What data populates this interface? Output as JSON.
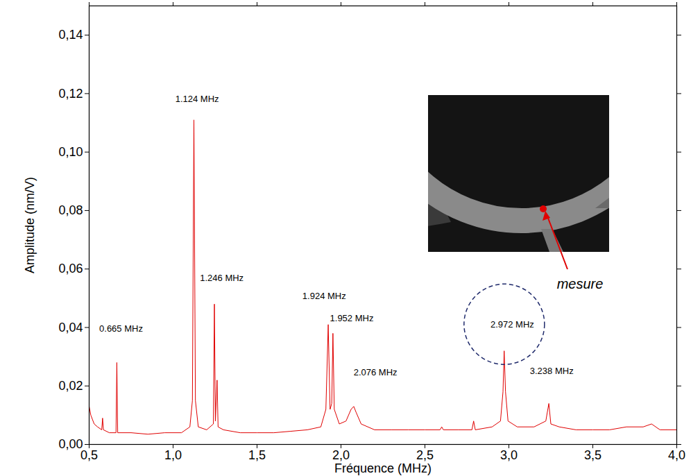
{
  "chart_data": {
    "type": "line",
    "x_label": "Fréquence (MHz)",
    "y_label": "Amplitude (nm/V)",
    "color": "#e00000",
    "grid": false,
    "xlim": [
      0.5,
      4.0
    ],
    "xticks": [
      {
        "value": 0.5,
        "label": "0,5"
      },
      {
        "value": 1.0,
        "label": "1,0"
      },
      {
        "value": 1.5,
        "label": "1,5"
      },
      {
        "value": 2.0,
        "label": "2,0"
      },
      {
        "value": 2.5,
        "label": "2,5"
      },
      {
        "value": 3.0,
        "label": "3,0"
      },
      {
        "value": 3.5,
        "label": "3,5"
      },
      {
        "value": 4.0,
        "label": "4,0"
      }
    ],
    "ylim": [
      0,
      0.15
    ],
    "yticks": [
      {
        "value": 0,
        "label": "0,00"
      },
      {
        "value": 0.02,
        "label": "0,02"
      },
      {
        "value": 0.04,
        "label": "0,04"
      },
      {
        "value": 0.06,
        "label": "0,06"
      },
      {
        "value": 0.08,
        "label": "0,08"
      },
      {
        "value": 0.1,
        "label": "0,10"
      },
      {
        "value": 0.12,
        "label": "0,12"
      },
      {
        "value": 0.14,
        "label": "0,14"
      }
    ],
    "x": [
      0.5,
      0.51,
      0.53,
      0.55,
      0.575,
      0.58,
      0.585,
      0.62,
      0.66,
      0.665,
      0.67,
      0.75,
      0.85,
      0.95,
      1.05,
      1.1,
      1.115,
      1.124,
      1.133,
      1.15,
      1.2,
      1.24,
      1.246,
      1.252,
      1.262,
      1.268,
      1.3,
      1.4,
      1.5,
      1.6,
      1.7,
      1.8,
      1.88,
      1.91,
      1.924,
      1.935,
      1.945,
      1.952,
      1.96,
      1.99,
      2.03,
      2.06,
      2.076,
      2.09,
      2.12,
      2.2,
      2.3,
      2.4,
      2.5,
      2.59,
      2.6,
      2.61,
      2.7,
      2.78,
      2.79,
      2.8,
      2.9,
      2.95,
      2.965,
      2.972,
      2.98,
      2.995,
      3.05,
      3.15,
      3.22,
      3.238,
      3.25,
      3.3,
      3.4,
      3.5,
      3.6,
      3.7,
      3.8,
      3.85,
      3.9,
      4.0
    ],
    "values": [
      0.013,
      0.01,
      0.007,
      0.006,
      0.005,
      0.009,
      0.005,
      0.004,
      0.004,
      0.028,
      0.004,
      0.004,
      0.0035,
      0.004,
      0.004,
      0.006,
      0.015,
      0.111,
      0.015,
      0.006,
      0.005,
      0.007,
      0.048,
      0.008,
      0.022,
      0.006,
      0.005,
      0.004,
      0.004,
      0.004,
      0.0045,
      0.005,
      0.006,
      0.012,
      0.041,
      0.012,
      0.014,
      0.038,
      0.012,
      0.007,
      0.008,
      0.012,
      0.013,
      0.011,
      0.007,
      0.005,
      0.005,
      0.005,
      0.005,
      0.005,
      0.006,
      0.005,
      0.005,
      0.005,
      0.008,
      0.005,
      0.006,
      0.008,
      0.018,
      0.032,
      0.018,
      0.008,
      0.006,
      0.006,
      0.008,
      0.014,
      0.007,
      0.006,
      0.005,
      0.005,
      0.005,
      0.006,
      0.006,
      0.007,
      0.005,
      0.005
    ],
    "annotations": [
      {
        "text": "0.665 MHz",
        "x": 0.69,
        "y": 0.0396
      },
      {
        "text": "1.124 MHz",
        "x": 1.143,
        "y": 0.118
      },
      {
        "text": "1.246 MHz",
        "x": 1.29,
        "y": 0.057
      },
      {
        "text": "1.924 MHz",
        "x": 1.9,
        "y": 0.0506
      },
      {
        "text": "1.952 MHz",
        "x": 2.064,
        "y": 0.043
      },
      {
        "text": "2.076 MHz",
        "x": 2.205,
        "y": 0.0246
      },
      {
        "text": "2.972 MHz",
        "x": 3.02,
        "y": 0.041
      },
      {
        "text": "3.238 MHz",
        "x": 3.255,
        "y": 0.025
      }
    ],
    "inset": {
      "label": "mesure"
    }
  }
}
